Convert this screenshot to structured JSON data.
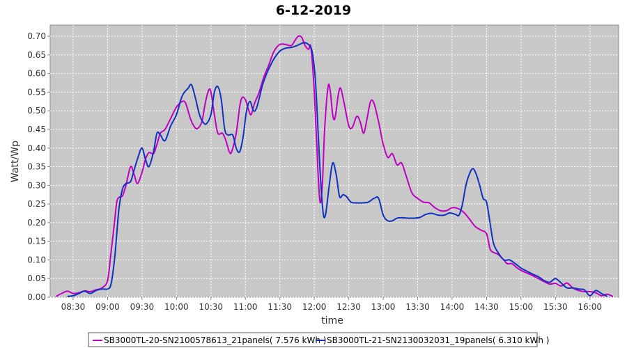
{
  "chart_data": {
    "type": "line",
    "title": "6-12-2019",
    "xlabel": "time",
    "ylabel": "Watt/Wp",
    "xlim": [
      "08:10",
      "16:25"
    ],
    "ylim": [
      0,
      0.73
    ],
    "x_ticks": [
      "08:30",
      "09:00",
      "09:30",
      "10:00",
      "10:30",
      "11:00",
      "11:30",
      "12:00",
      "12:30",
      "13:00",
      "13:30",
      "14:00",
      "14:30",
      "15:00",
      "15:30",
      "16:00"
    ],
    "y_ticks": [
      0.0,
      0.05,
      0.1,
      0.15,
      0.2,
      0.25,
      0.3,
      0.35,
      0.4,
      0.45,
      0.5,
      0.55,
      0.6,
      0.65,
      0.7
    ],
    "y_tick_labels": [
      "0.00",
      "0.05",
      "0.10",
      "0.15",
      "0.20",
      "0.25",
      "0.30",
      "0.35",
      "0.40",
      "0.45",
      "0.50",
      "0.55",
      "0.60",
      "0.65",
      "0.70"
    ],
    "grid": true,
    "legend_position": "bottom",
    "series": [
      {
        "name": "SB3000TL-20-SN2100578613_21panels( 7.576 kWh )",
        "color": "#c000c0",
        "points": [
          [
            "08:15",
            0.002
          ],
          [
            "08:20",
            0.01
          ],
          [
            "08:25",
            0.016
          ],
          [
            "08:30",
            0.01
          ],
          [
            "08:35",
            0.012
          ],
          [
            "08:40",
            0.017
          ],
          [
            "08:45",
            0.015
          ],
          [
            "08:50",
            0.02
          ],
          [
            "08:55",
            0.025
          ],
          [
            "09:00",
            0.045
          ],
          [
            "09:03",
            0.12
          ],
          [
            "09:06",
            0.2
          ],
          [
            "09:08",
            0.255
          ],
          [
            "09:10",
            0.268
          ],
          [
            "09:13",
            0.272
          ],
          [
            "09:16",
            0.3
          ],
          [
            "09:20",
            0.35
          ],
          [
            "09:23",
            0.33
          ],
          [
            "09:26",
            0.305
          ],
          [
            "09:30",
            0.335
          ],
          [
            "09:33",
            0.37
          ],
          [
            "09:36",
            0.388
          ],
          [
            "09:40",
            0.385
          ],
          [
            "09:43",
            0.41
          ],
          [
            "09:46",
            0.44
          ],
          [
            "09:50",
            0.45
          ],
          [
            "09:55",
            0.48
          ],
          [
            "10:00",
            0.51
          ],
          [
            "10:05",
            0.525
          ],
          [
            "10:08",
            0.52
          ],
          [
            "10:12",
            0.48
          ],
          [
            "10:15",
            0.46
          ],
          [
            "10:18",
            0.452
          ],
          [
            "10:22",
            0.47
          ],
          [
            "10:25",
            0.52
          ],
          [
            "10:28",
            0.555
          ],
          [
            "10:30",
            0.55
          ],
          [
            "10:33",
            0.49
          ],
          [
            "10:36",
            0.44
          ],
          [
            "10:40",
            0.44
          ],
          [
            "10:43",
            0.42
          ],
          [
            "10:46",
            0.39
          ],
          [
            "10:48",
            0.39
          ],
          [
            "10:52",
            0.44
          ],
          [
            "10:55",
            0.51
          ],
          [
            "10:57",
            0.535
          ],
          [
            "11:00",
            0.53
          ],
          [
            "11:03",
            0.5
          ],
          [
            "11:05",
            0.49
          ],
          [
            "11:08",
            0.52
          ],
          [
            "11:12",
            0.55
          ],
          [
            "11:16",
            0.59
          ],
          [
            "11:20",
            0.62
          ],
          [
            "11:25",
            0.66
          ],
          [
            "11:30",
            0.678
          ],
          [
            "11:35",
            0.678
          ],
          [
            "11:40",
            0.675
          ],
          [
            "11:43",
            0.688
          ],
          [
            "11:46",
            0.7
          ],
          [
            "11:49",
            0.697
          ],
          [
            "11:52",
            0.675
          ],
          [
            "11:55",
            0.665
          ],
          [
            "11:57",
            0.67
          ],
          [
            "12:00",
            0.55
          ],
          [
            "12:03",
            0.35
          ],
          [
            "12:05",
            0.255
          ],
          [
            "12:07",
            0.3
          ],
          [
            "12:09",
            0.45
          ],
          [
            "12:12",
            0.565
          ],
          [
            "12:14",
            0.55
          ],
          [
            "12:16",
            0.49
          ],
          [
            "12:18",
            0.48
          ],
          [
            "12:21",
            0.545
          ],
          [
            "12:23",
            0.56
          ],
          [
            "12:26",
            0.52
          ],
          [
            "12:30",
            0.46
          ],
          [
            "12:33",
            0.455
          ],
          [
            "12:37",
            0.485
          ],
          [
            "12:40",
            0.47
          ],
          [
            "12:43",
            0.44
          ],
          [
            "12:46",
            0.48
          ],
          [
            "12:49",
            0.525
          ],
          [
            "12:52",
            0.52
          ],
          [
            "12:56",
            0.47
          ],
          [
            "13:00",
            0.41
          ],
          [
            "13:04",
            0.375
          ],
          [
            "13:08",
            0.385
          ],
          [
            "13:12",
            0.355
          ],
          [
            "13:16",
            0.36
          ],
          [
            "13:20",
            0.325
          ],
          [
            "13:25",
            0.28
          ],
          [
            "13:30",
            0.265
          ],
          [
            "13:35",
            0.255
          ],
          [
            "13:40",
            0.253
          ],
          [
            "13:45",
            0.24
          ],
          [
            "13:50",
            0.232
          ],
          [
            "13:55",
            0.232
          ],
          [
            "14:00",
            0.24
          ],
          [
            "14:05",
            0.238
          ],
          [
            "14:10",
            0.228
          ],
          [
            "14:15",
            0.21
          ],
          [
            "14:20",
            0.19
          ],
          [
            "14:25",
            0.18
          ],
          [
            "14:30",
            0.17
          ],
          [
            "14:33",
            0.13
          ],
          [
            "14:36",
            0.12
          ],
          [
            "14:40",
            0.115
          ],
          [
            "14:45",
            0.1
          ],
          [
            "14:48",
            0.09
          ],
          [
            "14:52",
            0.09
          ],
          [
            "14:56",
            0.08
          ],
          [
            "15:00",
            0.072
          ],
          [
            "15:05",
            0.065
          ],
          [
            "15:10",
            0.058
          ],
          [
            "15:15",
            0.05
          ],
          [
            "15:20",
            0.042
          ],
          [
            "15:25",
            0.035
          ],
          [
            "15:30",
            0.037
          ],
          [
            "15:35",
            0.03
          ],
          [
            "15:40",
            0.038
          ],
          [
            "15:45",
            0.025
          ],
          [
            "15:50",
            0.018
          ],
          [
            "15:55",
            0.015
          ],
          [
            "16:00",
            0.015
          ],
          [
            "16:05",
            0.012
          ],
          [
            "16:10",
            0.004
          ],
          [
            "16:15",
            0.008
          ],
          [
            "16:20",
            0.002
          ]
        ]
      },
      {
        "name": "SB3000TL-21-SN2130032031_19panels( 6.310 kWh )",
        "color": "#1030c0",
        "points": [
          [
            "08:25",
            0.002
          ],
          [
            "08:30",
            0.004
          ],
          [
            "08:35",
            0.01
          ],
          [
            "08:40",
            0.016
          ],
          [
            "08:45",
            0.01
          ],
          [
            "08:50",
            0.018
          ],
          [
            "08:55",
            0.022
          ],
          [
            "09:00",
            0.022
          ],
          [
            "09:03",
            0.035
          ],
          [
            "09:06",
            0.1
          ],
          [
            "09:08",
            0.17
          ],
          [
            "09:10",
            0.24
          ],
          [
            "09:13",
            0.29
          ],
          [
            "09:16",
            0.305
          ],
          [
            "09:20",
            0.31
          ],
          [
            "09:23",
            0.34
          ],
          [
            "09:27",
            0.38
          ],
          [
            "09:30",
            0.4
          ],
          [
            "09:33",
            0.37
          ],
          [
            "09:36",
            0.35
          ],
          [
            "09:40",
            0.39
          ],
          [
            "09:43",
            0.44
          ],
          [
            "09:46",
            0.435
          ],
          [
            "09:50",
            0.42
          ],
          [
            "09:55",
            0.46
          ],
          [
            "10:00",
            0.49
          ],
          [
            "10:05",
            0.54
          ],
          [
            "10:10",
            0.56
          ],
          [
            "10:13",
            0.57
          ],
          [
            "10:16",
            0.54
          ],
          [
            "10:20",
            0.49
          ],
          [
            "10:23",
            0.47
          ],
          [
            "10:26",
            0.465
          ],
          [
            "10:30",
            0.49
          ],
          [
            "10:33",
            0.55
          ],
          [
            "10:36",
            0.565
          ],
          [
            "10:39",
            0.53
          ],
          [
            "10:42",
            0.45
          ],
          [
            "10:45",
            0.435
          ],
          [
            "10:49",
            0.435
          ],
          [
            "10:52",
            0.4
          ],
          [
            "10:55",
            0.39
          ],
          [
            "10:58",
            0.43
          ],
          [
            "11:01",
            0.5
          ],
          [
            "11:04",
            0.525
          ],
          [
            "11:07",
            0.5
          ],
          [
            "11:10",
            0.51
          ],
          [
            "11:15",
            0.57
          ],
          [
            "11:20",
            0.61
          ],
          [
            "11:25",
            0.64
          ],
          [
            "11:30",
            0.66
          ],
          [
            "11:35",
            0.668
          ],
          [
            "11:40",
            0.67
          ],
          [
            "11:45",
            0.675
          ],
          [
            "11:50",
            0.682
          ],
          [
            "11:54",
            0.68
          ],
          [
            "11:58",
            0.66
          ],
          [
            "12:01",
            0.58
          ],
          [
            "12:04",
            0.4
          ],
          [
            "12:06",
            0.29
          ],
          [
            "12:08",
            0.22
          ],
          [
            "12:10",
            0.225
          ],
          [
            "12:13",
            0.3
          ],
          [
            "12:16",
            0.36
          ],
          [
            "12:19",
            0.33
          ],
          [
            "12:22",
            0.27
          ],
          [
            "12:25",
            0.275
          ],
          [
            "12:28",
            0.27
          ],
          [
            "12:32",
            0.255
          ],
          [
            "12:37",
            0.253
          ],
          [
            "12:42",
            0.253
          ],
          [
            "12:47",
            0.255
          ],
          [
            "12:52",
            0.265
          ],
          [
            "12:56",
            0.265
          ],
          [
            "13:00",
            0.22
          ],
          [
            "13:04",
            0.205
          ],
          [
            "13:08",
            0.205
          ],
          [
            "13:12",
            0.212
          ],
          [
            "13:17",
            0.213
          ],
          [
            "13:22",
            0.212
          ],
          [
            "13:27",
            0.212
          ],
          [
            "13:32",
            0.214
          ],
          [
            "13:37",
            0.222
          ],
          [
            "13:42",
            0.225
          ],
          [
            "13:48",
            0.22
          ],
          [
            "13:53",
            0.22
          ],
          [
            "13:58",
            0.226
          ],
          [
            "14:03",
            0.222
          ],
          [
            "14:06",
            0.22
          ],
          [
            "14:09",
            0.25
          ],
          [
            "14:12",
            0.3
          ],
          [
            "14:15",
            0.33
          ],
          [
            "14:18",
            0.345
          ],
          [
            "14:21",
            0.33
          ],
          [
            "14:24",
            0.3
          ],
          [
            "14:27",
            0.265
          ],
          [
            "14:30",
            0.255
          ],
          [
            "14:33",
            0.2
          ],
          [
            "14:36",
            0.145
          ],
          [
            "14:40",
            0.12
          ],
          [
            "14:45",
            0.1
          ],
          [
            "14:50",
            0.1
          ],
          [
            "14:55",
            0.09
          ],
          [
            "15:00",
            0.078
          ],
          [
            "15:05",
            0.07
          ],
          [
            "15:10",
            0.062
          ],
          [
            "15:15",
            0.055
          ],
          [
            "15:20",
            0.045
          ],
          [
            "15:25",
            0.04
          ],
          [
            "15:30",
            0.05
          ],
          [
            "15:35",
            0.038
          ],
          [
            "15:40",
            0.025
          ],
          [
            "15:45",
            0.025
          ],
          [
            "15:50",
            0.022
          ],
          [
            "15:55",
            0.02
          ],
          [
            "16:00",
            0.004
          ],
          [
            "16:05",
            0.018
          ],
          [
            "16:10",
            0.01
          ],
          [
            "16:15",
            0.002
          ]
        ]
      }
    ]
  }
}
